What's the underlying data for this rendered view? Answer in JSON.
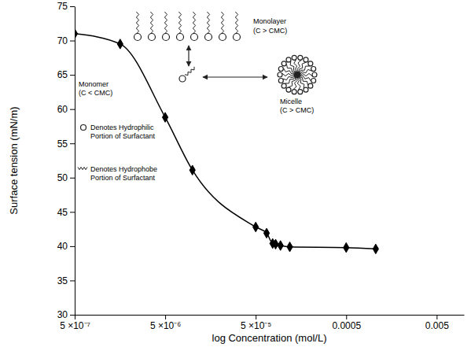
{
  "chart_data": {
    "type": "line",
    "x_label": "log Concentration (mol/L)",
    "y_label": "Surface tension (mN/m)",
    "x": [
      5e-07,
      1.59e-06,
      5e-06,
      1e-05,
      5e-05,
      6.6e-05,
      7.7e-05,
      8.3e-05,
      9.4e-05,
      0.000119,
      0.0005,
      0.00106
    ],
    "values": [
      71.0,
      69.5,
      58.8,
      51.1,
      42.8,
      41.9,
      40.4,
      40.3,
      40.1,
      39.9,
      39.8,
      39.6
    ],
    "color": "#000000",
    "marker": "diamond",
    "line_style": "solid",
    "log": "x",
    "grid": false,
    "xlim": [
      5e-07,
      0.01
    ],
    "xticks": [
      {
        "value": 5e-07,
        "label": "5 ×10⁻⁷"
      },
      {
        "value": 5e-06,
        "label": "5 ×10⁻⁶"
      },
      {
        "value": 5e-05,
        "label": "5 ×10⁻⁵"
      },
      0.0005,
      0.005
    ],
    "ylim": [
      30,
      75
    ],
    "yticks": [
      30,
      35,
      40,
      45,
      50,
      55,
      60,
      65,
      70,
      75
    ],
    "annotations": [
      "Monolayer",
      "(C > CMC)",
      "Monomer",
      "(C < CMC)",
      "Micelle",
      "(C > CMC)",
      "Denotes Hydrophilic",
      "Portion of Surfactant",
      "Denotes Hydrophobe",
      "Portion of Surfactant"
    ]
  }
}
